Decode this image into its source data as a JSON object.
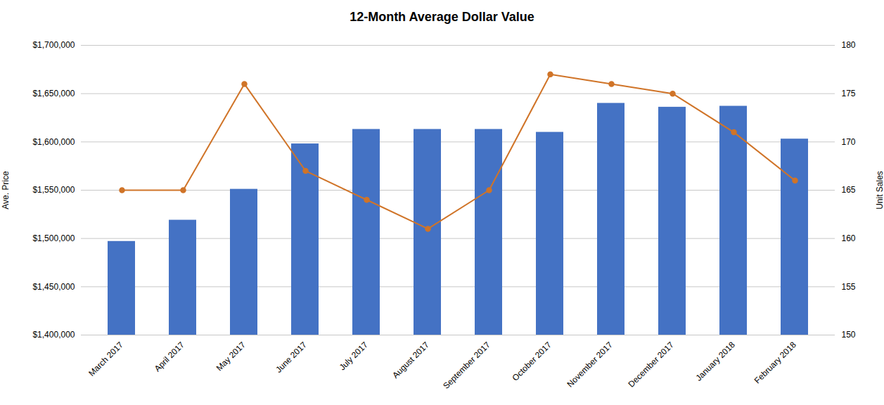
{
  "chart_data": {
    "type": "bar",
    "title": "12-Month Average Dollar Value",
    "categories": [
      "March 2017",
      "April 2017",
      "May 2017",
      "June 2017",
      "July 2017",
      "August 2017",
      "September 2017",
      "October 2017",
      "November 2017",
      "December 2017",
      "January 2018",
      "February 2018"
    ],
    "series": [
      {
        "type": "bar",
        "color": "#4472C4",
        "values": [
          1497000,
          1519000,
          1551000,
          1598000,
          1613000,
          1613000,
          1613000,
          1610000,
          1640000,
          1636000,
          1637000,
          1603000
        ]
      },
      {
        "type": "line",
        "axis": "y2",
        "color": "#D07428",
        "marker": "circle",
        "values": [
          165,
          165,
          176,
          167,
          164,
          161,
          165,
          177,
          176,
          175,
          171,
          166
        ]
      }
    ],
    "ylabel": "Ave. Price",
    "y2label": "Unit Sales",
    "ylim": [
      1400000,
      1700000
    ],
    "yticks": [
      {
        "value": 1400000,
        "label": "$1,400,000"
      },
      {
        "value": 1450000,
        "label": "$1,450,000"
      },
      {
        "value": 1500000,
        "label": "$1,500,000"
      },
      {
        "value": 1550000,
        "label": "$1,550,000"
      },
      {
        "value": 1600000,
        "label": "$1,600,000"
      },
      {
        "value": 1650000,
        "label": "$1,650,000"
      },
      {
        "value": 1700000,
        "label": "$1,700,000"
      }
    ],
    "y2lim": [
      150,
      180
    ],
    "y2ticks": [
      150,
      155,
      160,
      165,
      170,
      175,
      180
    ],
    "grid": true
  }
}
